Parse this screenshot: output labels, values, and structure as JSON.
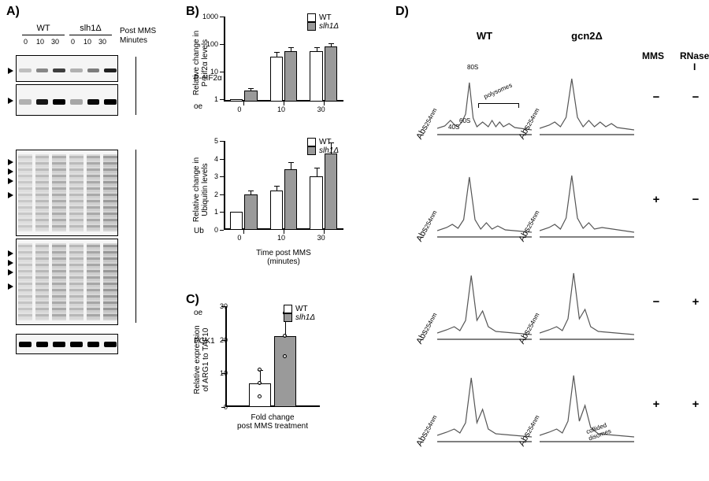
{
  "labels": {
    "A": "A)",
    "B": "B)",
    "C": "C)",
    "D": "D)",
    "post_mms": "Post MMS",
    "minutes": "Minutes"
  },
  "panelA": {
    "strains": [
      "WT",
      "slh1Δ"
    ],
    "timepoints": [
      "0",
      "10",
      "30"
    ],
    "blots": {
      "p_eif2a": {
        "label": "P-eIF2α",
        "oe": "oe",
        "heights": [
          34,
          40
        ]
      },
      "ub": {
        "label": "Ub",
        "oe": "oe",
        "height": 110
      },
      "pgk1": {
        "label": "PGK1",
        "height": 26
      }
    },
    "band_intensity": {
      "p_eif2a_top": [
        0.08,
        0.35,
        0.7,
        0.15,
        0.4,
        0.85
      ],
      "p_eif2a_oe": [
        0.15,
        0.9,
        1.0,
        0.2,
        0.95,
        1.0
      ],
      "pgk1": [
        1,
        1,
        1,
        1,
        1,
        1
      ]
    },
    "ub_smear_intensity_top": [
      0.3,
      0.5,
      0.7,
      0.5,
      0.75,
      0.95
    ],
    "ub_smear_intensity_oe": [
      0.35,
      0.55,
      0.75,
      0.55,
      0.8,
      1.0
    ]
  },
  "panelB": {
    "top": {
      "title_y": "Relative change in\nP-eif2α levels",
      "x": [
        0,
        10,
        30
      ],
      "wt": [
        1,
        35,
        55
      ],
      "slh1d": [
        2,
        55,
        80
      ],
      "wt_err": [
        0,
        15,
        20
      ],
      "slh1d_err": [
        0.5,
        20,
        25
      ],
      "yticks": [
        1,
        10,
        100,
        1000
      ],
      "ylim": [
        0.8,
        1000
      ],
      "scale": "log",
      "colors": {
        "wt": "#ffffff",
        "slh1d": "#9a9a9a"
      },
      "legend": [
        "WT",
        "slh1Δ"
      ]
    },
    "bottom": {
      "title_y": "Relative change in\nUbiquitin levels",
      "x": [
        0,
        10,
        30
      ],
      "wt": [
        1.0,
        2.2,
        3.0
      ],
      "slh1d": [
        2.0,
        3.4,
        4.3
      ],
      "wt_err": [
        0,
        0.3,
        0.5
      ],
      "slh1d_err": [
        0.2,
        0.4,
        0.6
      ],
      "yticks": [
        0,
        1,
        2,
        3,
        4,
        5
      ],
      "ylim": [
        0,
        5
      ],
      "scale": "linear",
      "colors": {
        "wt": "#ffffff",
        "slh1d": "#9a9a9a"
      },
      "legend": [
        "WT",
        "slh1Δ"
      ],
      "xlabel": "Time post MMS\n(minutes)"
    }
  },
  "panelC": {
    "title_y": "Relative expression\nof ARG1 to TAF10",
    "xlabel": "Fold change\npost MMS treatment",
    "wt": 7,
    "slh1d": 21,
    "wt_err": 4,
    "slh1d_err": 7,
    "yticks": [
      0,
      10,
      20,
      30
    ],
    "ylim": [
      0,
      30
    ],
    "colors": {
      "wt": "#ffffff",
      "slh1d": "#9a9a9a"
    },
    "legend": [
      "WT",
      "slh1Δ"
    ],
    "wt_pts": [
      3,
      7,
      11
    ],
    "slh1d_pts": [
      15,
      21,
      28
    ]
  },
  "panelD": {
    "cols": [
      "WT",
      "gcn2Δ"
    ],
    "cond_headers": [
      "MMS",
      "RNase I"
    ],
    "conditions": [
      {
        "mms": "−",
        "rnase": "−"
      },
      {
        "mms": "+",
        "rnase": "−"
      },
      {
        "mms": "−",
        "rnase": "+"
      },
      {
        "mms": "+",
        "rnase": "+"
      }
    ],
    "annotations": {
      "s40": "40S",
      "s60": "60S",
      "s80": "80S",
      "polysomes": "polysomes",
      "collided": "collided\ndisomes"
    },
    "abs_label": "Abs",
    "abs_sub": "254nm",
    "profile_color": "#555555",
    "profiles": {
      "wt": [
        [
          [
            0,
            88
          ],
          [
            8,
            85
          ],
          [
            14,
            78
          ],
          [
            18,
            83
          ],
          [
            22,
            86
          ],
          [
            26,
            80
          ],
          [
            30,
            70
          ],
          [
            34,
            30
          ],
          [
            38,
            75
          ],
          [
            42,
            86
          ],
          [
            48,
            80
          ],
          [
            54,
            86
          ],
          [
            58,
            78
          ],
          [
            62,
            86
          ],
          [
            66,
            80
          ],
          [
            70,
            86
          ],
          [
            76,
            82
          ],
          [
            82,
            87
          ],
          [
            100,
            90
          ]
        ],
        [
          [
            0,
            88
          ],
          [
            10,
            84
          ],
          [
            16,
            80
          ],
          [
            22,
            85
          ],
          [
            28,
            74
          ],
          [
            34,
            20
          ],
          [
            40,
            74
          ],
          [
            46,
            86
          ],
          [
            52,
            78
          ],
          [
            58,
            86
          ],
          [
            64,
            82
          ],
          [
            72,
            87
          ],
          [
            100,
            90
          ]
        ],
        [
          [
            0,
            88
          ],
          [
            10,
            84
          ],
          [
            18,
            80
          ],
          [
            24,
            85
          ],
          [
            30,
            72
          ],
          [
            36,
            15
          ],
          [
            42,
            72
          ],
          [
            48,
            60
          ],
          [
            54,
            80
          ],
          [
            62,
            86
          ],
          [
            100,
            90
          ]
        ],
        [
          [
            0,
            88
          ],
          [
            10,
            84
          ],
          [
            18,
            80
          ],
          [
            24,
            85
          ],
          [
            30,
            72
          ],
          [
            36,
            15
          ],
          [
            42,
            72
          ],
          [
            48,
            55
          ],
          [
            54,
            80
          ],
          [
            62,
            86
          ],
          [
            100,
            90
          ]
        ]
      ],
      "gcn2d": [
        [
          [
            0,
            88
          ],
          [
            10,
            84
          ],
          [
            16,
            80
          ],
          [
            22,
            86
          ],
          [
            28,
            74
          ],
          [
            34,
            25
          ],
          [
            40,
            74
          ],
          [
            46,
            86
          ],
          [
            52,
            78
          ],
          [
            58,
            86
          ],
          [
            64,
            80
          ],
          [
            70,
            86
          ],
          [
            76,
            82
          ],
          [
            82,
            87
          ],
          [
            100,
            90
          ]
        ],
        [
          [
            0,
            88
          ],
          [
            10,
            84
          ],
          [
            16,
            80
          ],
          [
            22,
            86
          ],
          [
            28,
            72
          ],
          [
            34,
            18
          ],
          [
            40,
            72
          ],
          [
            46,
            85
          ],
          [
            52,
            78
          ],
          [
            58,
            86
          ],
          [
            66,
            84
          ],
          [
            100,
            90
          ]
        ],
        [
          [
            0,
            88
          ],
          [
            10,
            84
          ],
          [
            18,
            80
          ],
          [
            24,
            85
          ],
          [
            30,
            70
          ],
          [
            36,
            12
          ],
          [
            42,
            70
          ],
          [
            48,
            58
          ],
          [
            54,
            80
          ],
          [
            62,
            86
          ],
          [
            100,
            90
          ]
        ],
        [
          [
            0,
            88
          ],
          [
            10,
            84
          ],
          [
            18,
            80
          ],
          [
            24,
            85
          ],
          [
            30,
            70
          ],
          [
            36,
            12
          ],
          [
            42,
            70
          ],
          [
            48,
            50
          ],
          [
            54,
            78
          ],
          [
            62,
            86
          ],
          [
            100,
            90
          ]
        ]
      ]
    }
  },
  "colors": {
    "black": "#000000",
    "white": "#ffffff",
    "grey": "#9a9a9a",
    "bg": "#ffffff",
    "trace": "#555555"
  }
}
